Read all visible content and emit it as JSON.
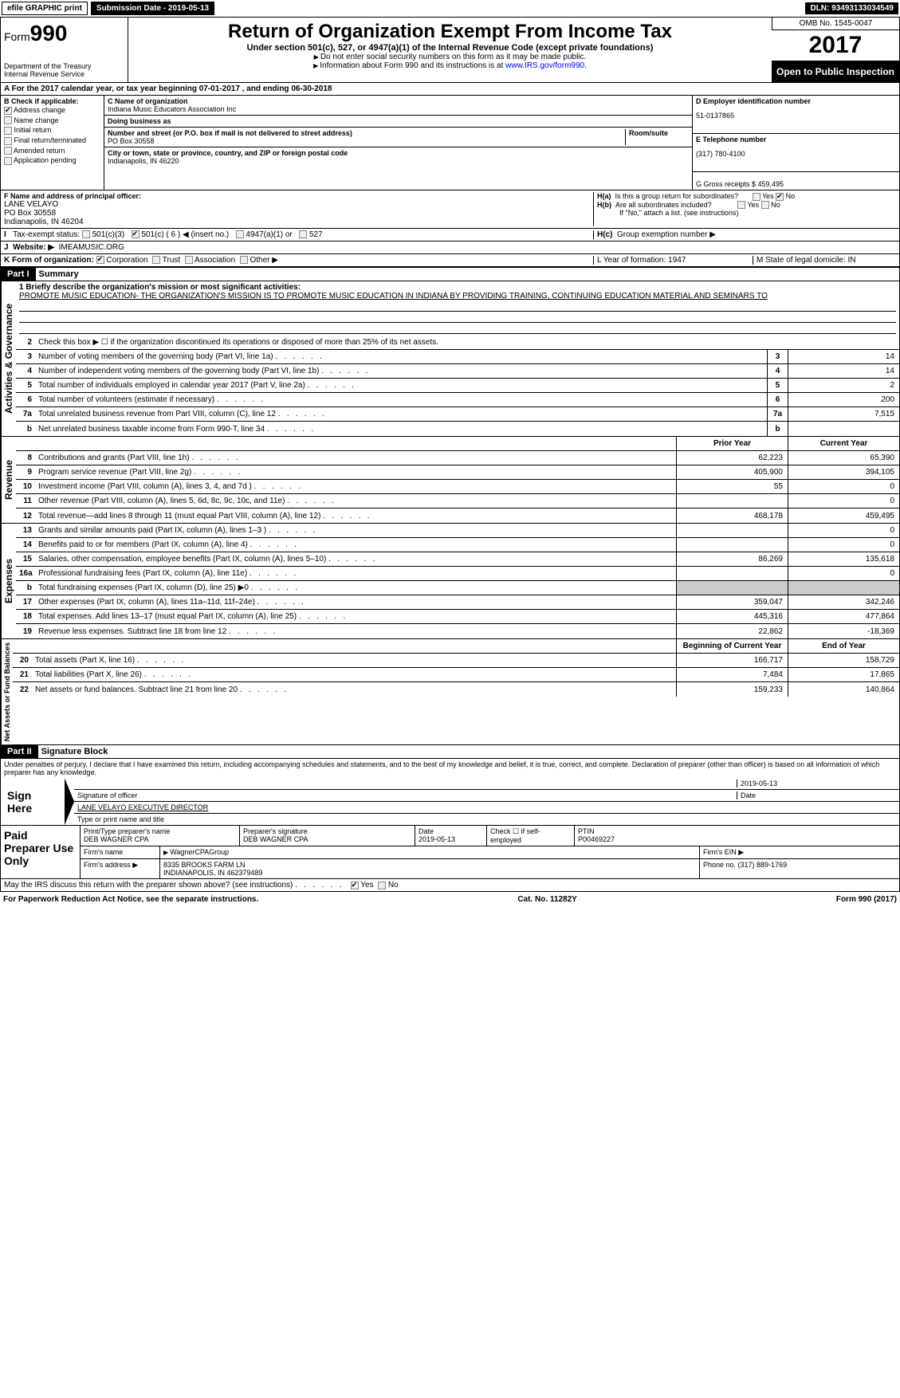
{
  "topbar": {
    "efile": "efile GRAPHIC print",
    "submission": "Submission Date - 2019-05-13",
    "dln": "DLN: 93493133034549"
  },
  "header": {
    "form_prefix": "Form",
    "form_num": "990",
    "dept": "Department of the Treasury",
    "irs": "Internal Revenue Service",
    "title": "Return of Organization Exempt From Income Tax",
    "subtitle": "Under section 501(c), 527, or 4947(a)(1) of the Internal Revenue Code (except private foundations)",
    "note1": "Do not enter social security numbers on this form as it may be made public.",
    "note2": "Information about Form 990 and its instructions is at ",
    "link": "www.IRS.gov/form990",
    "omb": "OMB No. 1545-0047",
    "year": "2017",
    "open": "Open to Public Inspection"
  },
  "row_a": "A  For the 2017 calendar year, or tax year beginning 07-01-2017     , and ending 06-30-2018",
  "col_b": {
    "label": "B Check if applicable:",
    "items": [
      "Address change",
      "Name change",
      "Initial return",
      "Final return/terminated",
      "Amended return",
      "Application pending"
    ]
  },
  "col_c": {
    "name_label": "C Name of organization",
    "name": "Indiana Music Educators Association Inc",
    "dba_label": "Doing business as",
    "dba": "",
    "addr_label": "Number and street (or P.O. box if mail is not delivered to street address)",
    "room_label": "Room/suite",
    "addr": "PO Box 30558",
    "city_label": "City or town, state or province, country, and ZIP or foreign postal code",
    "city": "Indianapolis, IN   46220"
  },
  "col_d": {
    "ein_label": "D Employer identification number",
    "ein": "51-0137865",
    "tel_label": "E Telephone number",
    "tel": "(317) 780-4100",
    "gross_label": "G Gross receipts $ 459,495"
  },
  "row_f": {
    "label": "F Name and address of principal officer:",
    "name": "LANE VELAYO",
    "addr": "PO Box 30558",
    "city": "Indianapolis, IN   46204"
  },
  "row_h": {
    "a": "Is this a group return for subordinates?",
    "b": "Are all subordinates included?",
    "b2": "If \"No,\" attach a list. (see instructions)",
    "c": "Group exemption number ▶"
  },
  "row_i": {
    "label": "Tax-exempt status:",
    "opts": [
      "501(c)(3)",
      "501(c) ( 6 ) ◀ (insert no.)",
      "4947(a)(1) or",
      "527"
    ]
  },
  "row_j": {
    "label": "Website: ▶",
    "val": "IMEAMUSIC.ORG"
  },
  "row_k": {
    "label": "K Form of organization:",
    "opts": [
      "Corporation",
      "Trust",
      "Association",
      "Other ▶"
    ]
  },
  "row_l": {
    "label": "L Year of formation: 1947",
    "m": "M State of legal domicile: IN"
  },
  "part1": {
    "header": "Part I",
    "title": "Summary",
    "mission_label": "1  Briefly describe the organization's mission or most significant activities:",
    "mission": "PROMOTE MUSIC EDUCATION- THE ORGANIZATION'S MISSION IS TO PROMOTE MUSIC EDUCATION IN INDIANA BY PROVIDING TRAINING, CONTINUING EDUCATION MATERIAL AND SEMINARS TO",
    "line2": "Check this box ▶ ☐  if the organization discontinued its operations or disposed of more than 25% of its net assets.",
    "prior_year": "Prior Year",
    "current_year": "Current Year",
    "begin_year": "Beginning of Current Year",
    "end_year": "End of Year"
  },
  "gov_lines": [
    {
      "n": "3",
      "t": "Number of voting members of the governing body (Part VI, line 1a)",
      "v": "14"
    },
    {
      "n": "4",
      "t": "Number of independent voting members of the governing body (Part VI, line 1b)",
      "v": "14"
    },
    {
      "n": "5",
      "t": "Total number of individuals employed in calendar year 2017 (Part V, line 2a)",
      "v": "2"
    },
    {
      "n": "6",
      "t": "Total number of volunteers (estimate if necessary)",
      "v": "200"
    },
    {
      "n": "7a",
      "t": "Total unrelated business revenue from Part VIII, column (C), line 12",
      "v": "7,515"
    },
    {
      "n": "b",
      "t": "Net unrelated business taxable income from Form 990-T, line 34",
      "v": ""
    }
  ],
  "rev_lines": [
    {
      "n": "8",
      "t": "Contributions and grants (Part VIII, line 1h)",
      "p": "62,223",
      "c": "65,390"
    },
    {
      "n": "9",
      "t": "Program service revenue (Part VIII, line 2g)",
      "p": "405,900",
      "c": "394,105"
    },
    {
      "n": "10",
      "t": "Investment income (Part VIII, column (A), lines 3, 4, and 7d )",
      "p": "55",
      "c": "0"
    },
    {
      "n": "11",
      "t": "Other revenue (Part VIII, column (A), lines 5, 6d, 8c, 9c, 10c, and 11e)",
      "p": "",
      "c": "0"
    },
    {
      "n": "12",
      "t": "Total revenue—add lines 8 through 11 (must equal Part VIII, column (A), line 12)",
      "p": "468,178",
      "c": "459,495"
    }
  ],
  "exp_lines": [
    {
      "n": "13",
      "t": "Grants and similar amounts paid (Part IX, column (A), lines 1–3 )",
      "p": "",
      "c": "0"
    },
    {
      "n": "14",
      "t": "Benefits paid to or for members (Part IX, column (A), line 4)",
      "p": "",
      "c": "0"
    },
    {
      "n": "15",
      "t": "Salaries, other compensation, employee benefits (Part IX, column (A), lines 5–10)",
      "p": "86,269",
      "c": "135,618"
    },
    {
      "n": "16a",
      "t": "Professional fundraising fees (Part IX, column (A), line 11e)",
      "p": "",
      "c": "0"
    },
    {
      "n": "b",
      "t": "Total fundraising expenses (Part IX, column (D), line 25) ▶0",
      "p": "shaded",
      "c": "shaded"
    },
    {
      "n": "17",
      "t": "Other expenses (Part IX, column (A), lines 11a–11d, 11f–24e)",
      "p": "359,047",
      "c": "342,246"
    },
    {
      "n": "18",
      "t": "Total expenses. Add lines 13–17 (must equal Part IX, column (A), line 25)",
      "p": "445,316",
      "c": "477,864"
    },
    {
      "n": "19",
      "t": "Revenue less expenses. Subtract line 18 from line 12",
      "p": "22,862",
      "c": "-18,369"
    }
  ],
  "net_lines": [
    {
      "n": "20",
      "t": "Total assets (Part X, line 16)",
      "p": "166,717",
      "c": "158,729"
    },
    {
      "n": "21",
      "t": "Total liabilities (Part X, line 26)",
      "p": "7,484",
      "c": "17,865"
    },
    {
      "n": "22",
      "t": "Net assets or fund balances. Subtract line 21 from line 20",
      "p": "159,233",
      "c": "140,864"
    }
  ],
  "vert": {
    "gov": "Activities & Governance",
    "rev": "Revenue",
    "exp": "Expenses",
    "net": "Net Assets or Fund Balances"
  },
  "part2": {
    "header": "Part II",
    "title": "Signature Block",
    "perjury": "Under penalties of perjury, I declare that I have examined this return, including accompanying schedules and statements, and to the best of my knowledge and belief, it is true, correct, and complete. Declaration of preparer (other than officer) is based on all information of which preparer has any knowledge.",
    "sign_here": "Sign Here",
    "sig_officer": "Signature of officer",
    "date": "2019-05-13",
    "date_label": "Date",
    "officer_name": "LANE VELAYO  EXECUTIVE DIRECTOR",
    "type_name": "Type or print name and title",
    "paid": "Paid Preparer Use Only",
    "prep_name_label": "Print/Type preparer's name",
    "prep_name": "DEB WAGNER CPA",
    "prep_sig_label": "Preparer's signature",
    "prep_sig": "DEB WAGNER CPA",
    "prep_date": "2019-05-13",
    "self_emp": "Check ☐ if self-employed",
    "ptin_label": "PTIN",
    "ptin": "P00469227",
    "firm_name_label": "Firm's name",
    "firm_name": "WagnerCPAGroup",
    "firm_ein_label": "Firm's EIN ▶",
    "firm_addr_label": "Firm's address ▶",
    "firm_addr": "8335 BROOKS FARM LN",
    "firm_city": "INDIANAPOLIS, IN  462379489",
    "firm_phone_label": "Phone no. (317) 889-1769",
    "discuss": "May the IRS discuss this return with the preparer shown above? (see instructions)"
  },
  "footer": {
    "left": "For Paperwork Reduction Act Notice, see the separate instructions.",
    "mid": "Cat. No. 11282Y",
    "right": "Form 990 (2017)"
  }
}
